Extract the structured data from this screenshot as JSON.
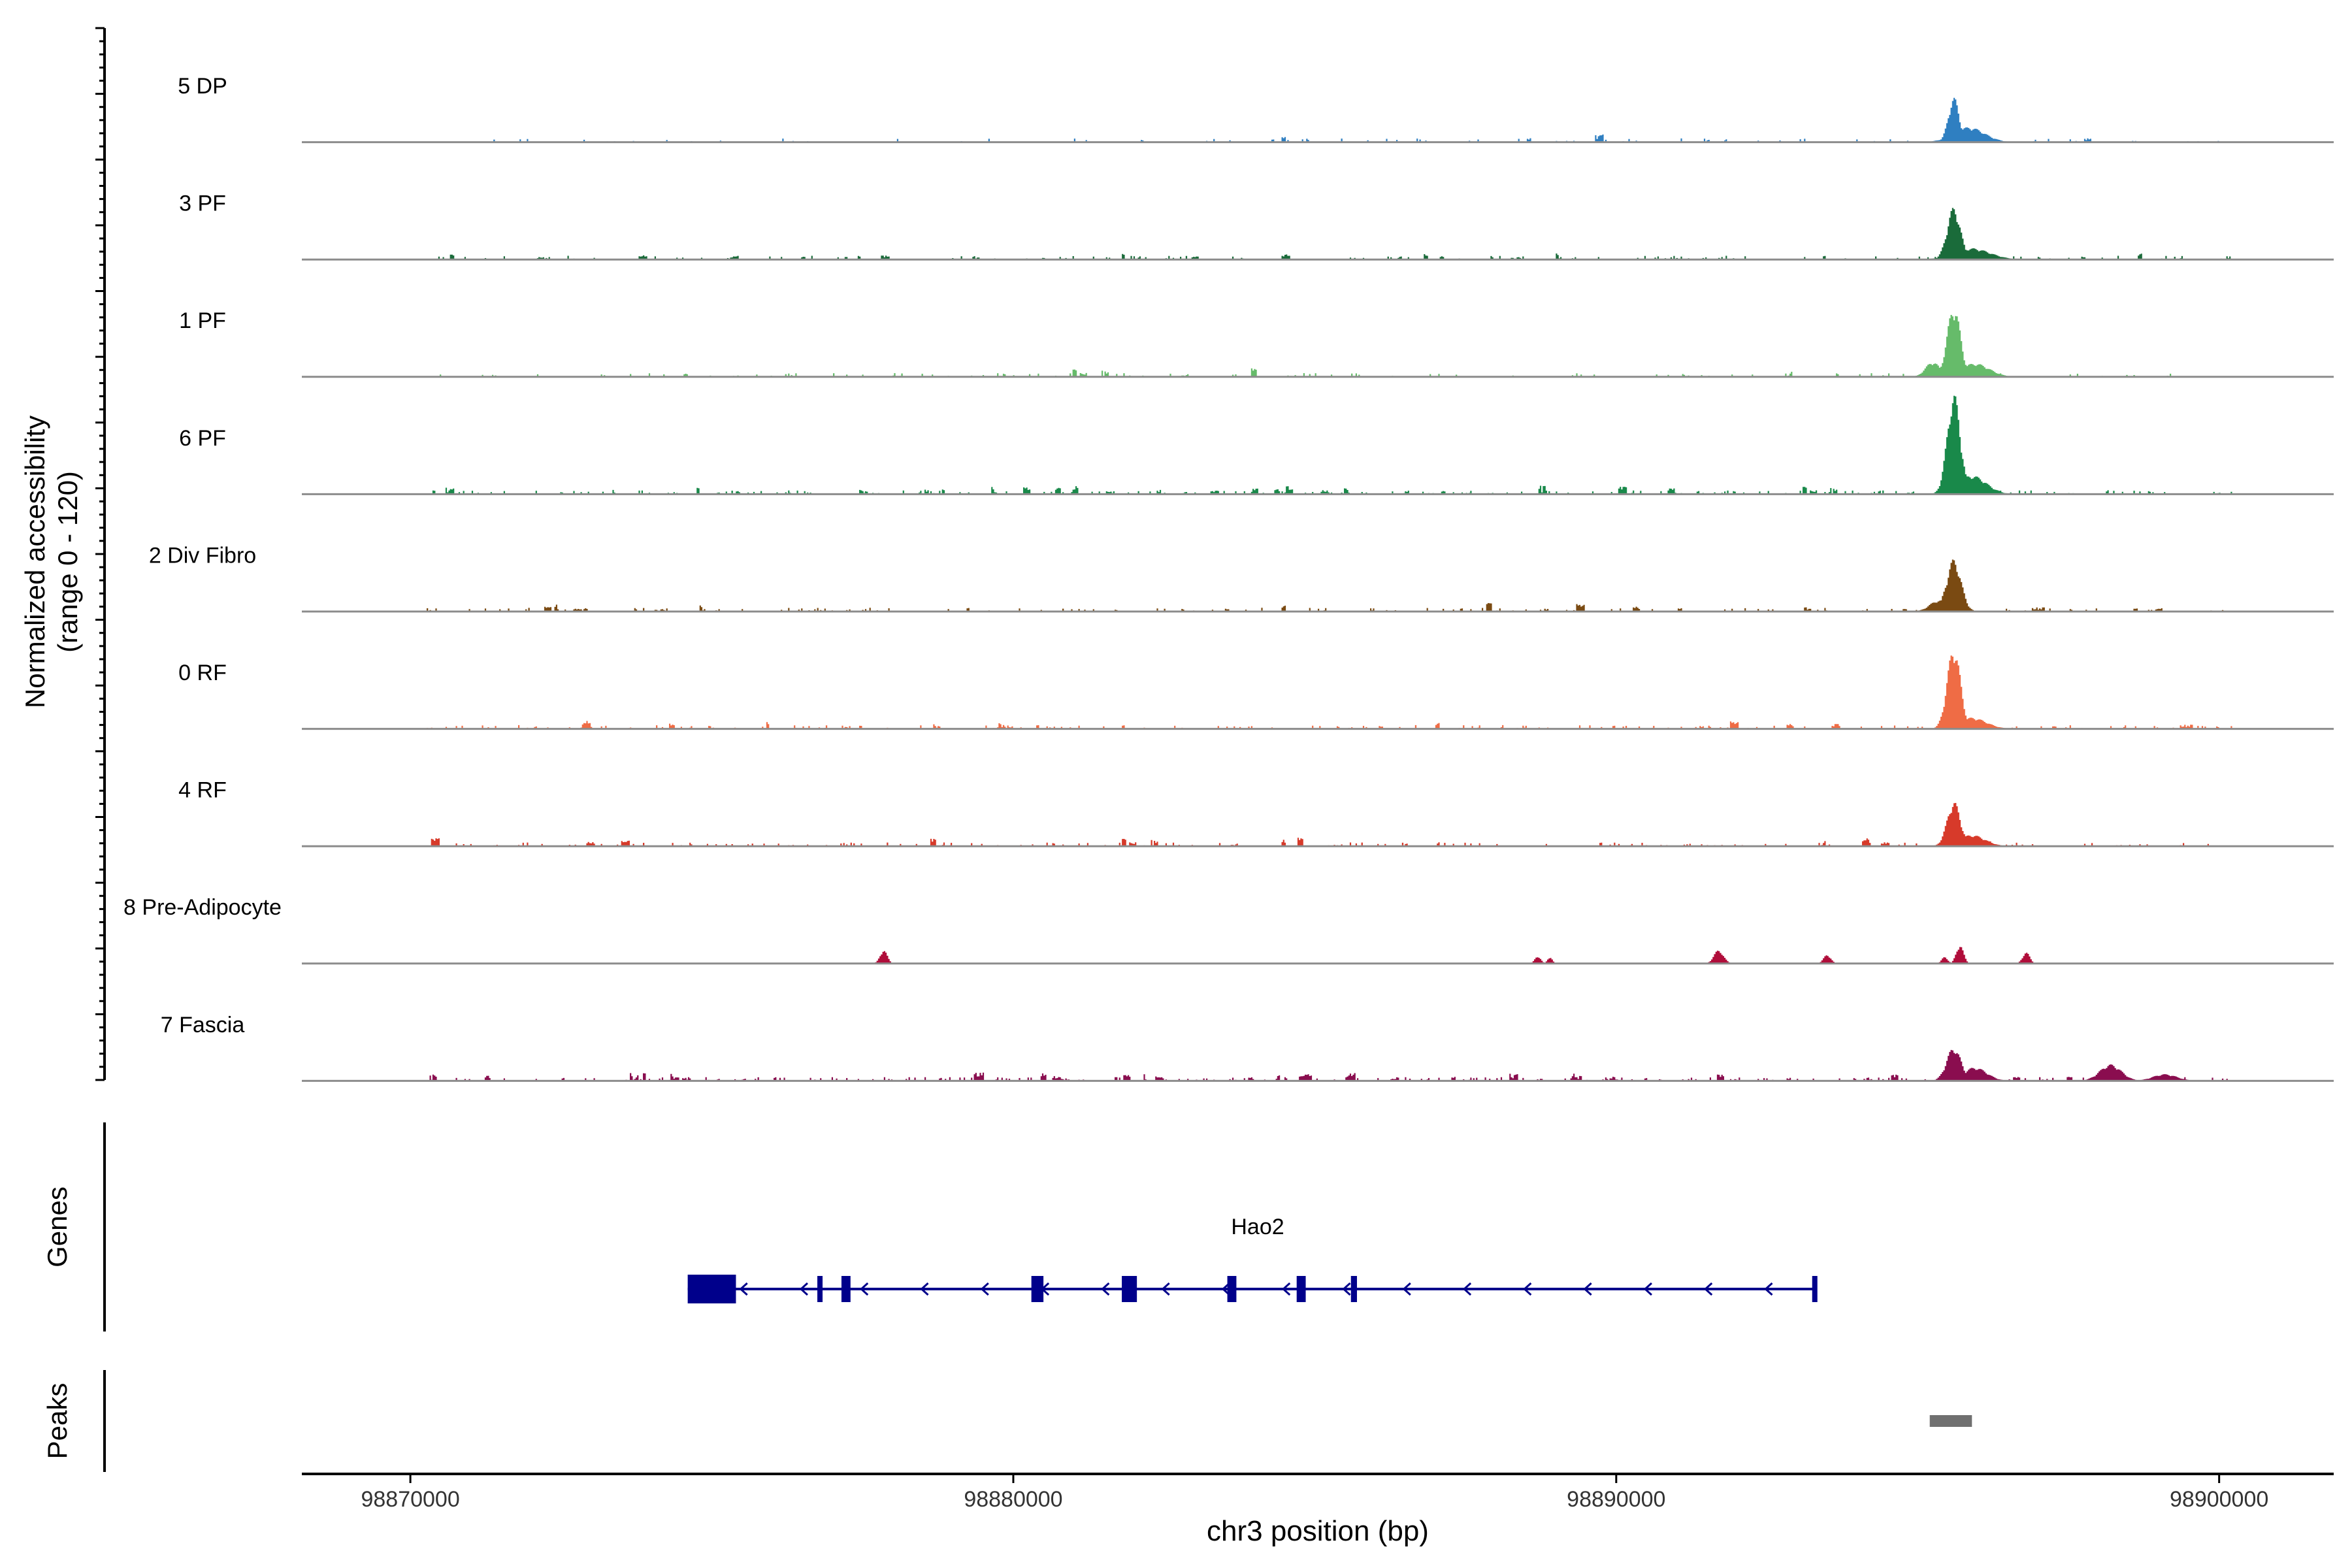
{
  "chart_data": {
    "type": "area",
    "y_axis_title_line1": "Normalized accessibility",
    "y_axis_title_line2": "(range 0 - 120)",
    "ylim": [
      0,
      120
    ],
    "x_label": "chr3 position (bp)",
    "xlim": [
      98868200,
      98901900
    ],
    "x_ticks": [
      98870000,
      98880000,
      98890000,
      98900000
    ],
    "tracks": [
      {
        "name": "5 DP",
        "color": "#2f7fc1",
        "peaks": [
          [
            98895600,
            60,
            90
          ],
          [
            98895850,
            20,
            260
          ]
        ],
        "noise_seed": 11,
        "noise_density": 0.06
      },
      {
        "name": "3 PF",
        "color": "#1a6b3a",
        "peaks": [
          [
            98895600,
            70,
            110
          ],
          [
            98895900,
            15,
            300
          ]
        ],
        "noise_seed": 23,
        "noise_density": 0.1
      },
      {
        "name": "1 PF",
        "color": "#66bb6a",
        "peaks": [
          [
            98895600,
            95,
            110
          ],
          [
            98895250,
            20,
            120
          ],
          [
            98895950,
            18,
            240
          ]
        ],
        "noise_seed": 37,
        "noise_density": 0.08
      },
      {
        "name": "6 PF",
        "color": "#19894a",
        "peaks": [
          [
            98895600,
            135,
            110
          ],
          [
            98895900,
            25,
            240
          ]
        ],
        "noise_seed": 41,
        "noise_density": 0.14
      },
      {
        "name": "2 Div Fibro",
        "color": "#7a4a12",
        "peaks": [
          [
            98895600,
            70,
            120
          ],
          [
            98895350,
            15,
            150
          ]
        ],
        "noise_seed": 53,
        "noise_density": 0.1
      },
      {
        "name": "0 RF",
        "color": "#ef6c45",
        "peaks": [
          [
            98895600,
            110,
            110
          ],
          [
            98895900,
            15,
            240
          ]
        ],
        "noise_seed": 61,
        "noise_density": 0.12
      },
      {
        "name": "4 RF",
        "color": "#d73a2a",
        "peaks": [
          [
            98895600,
            60,
            110
          ],
          [
            98895900,
            15,
            220
          ]
        ],
        "noise_seed": 71,
        "noise_density": 0.1
      },
      {
        "name": "8 Pre-Adipocyte",
        "color": "#b00d3a",
        "peaks": [
          [
            98877850,
            18,
            60
          ],
          [
            98888700,
            10,
            50
          ],
          [
            98888900,
            9,
            40
          ],
          [
            98891700,
            18,
            80
          ],
          [
            98893500,
            12,
            60
          ],
          [
            98895450,
            9,
            50
          ],
          [
            98895700,
            25,
            60
          ],
          [
            98896800,
            15,
            60
          ]
        ],
        "noise_seed": 0,
        "noise_density": 0.0
      },
      {
        "name": "7 Fascia",
        "color": "#8a0d4f",
        "peaks": [
          [
            98895600,
            45,
            120
          ],
          [
            98895950,
            18,
            200
          ],
          [
            98898200,
            22,
            180
          ],
          [
            98899100,
            9,
            200
          ]
        ],
        "noise_seed": 83,
        "noise_density": 0.16
      }
    ],
    "genes_label": "Genes",
    "gene": {
      "name": "Hao2",
      "start": 98874600,
      "end": 98893300,
      "strand": "-",
      "color": "#00008b",
      "exons": [
        [
          98874600,
          98875400
        ],
        [
          98876750,
          98876780
        ],
        [
          98877150,
          98877300
        ],
        [
          98880300,
          98880500
        ],
        [
          98881800,
          98882050
        ],
        [
          98883550,
          98883700
        ],
        [
          98884700,
          98884850
        ],
        [
          98885600,
          98885700
        ],
        [
          98893250,
          98893300
        ]
      ]
    },
    "peaks_label": "Peaks",
    "peak_regions": [
      [
        98895200,
        98895900
      ]
    ],
    "peak_color": "#707070"
  }
}
